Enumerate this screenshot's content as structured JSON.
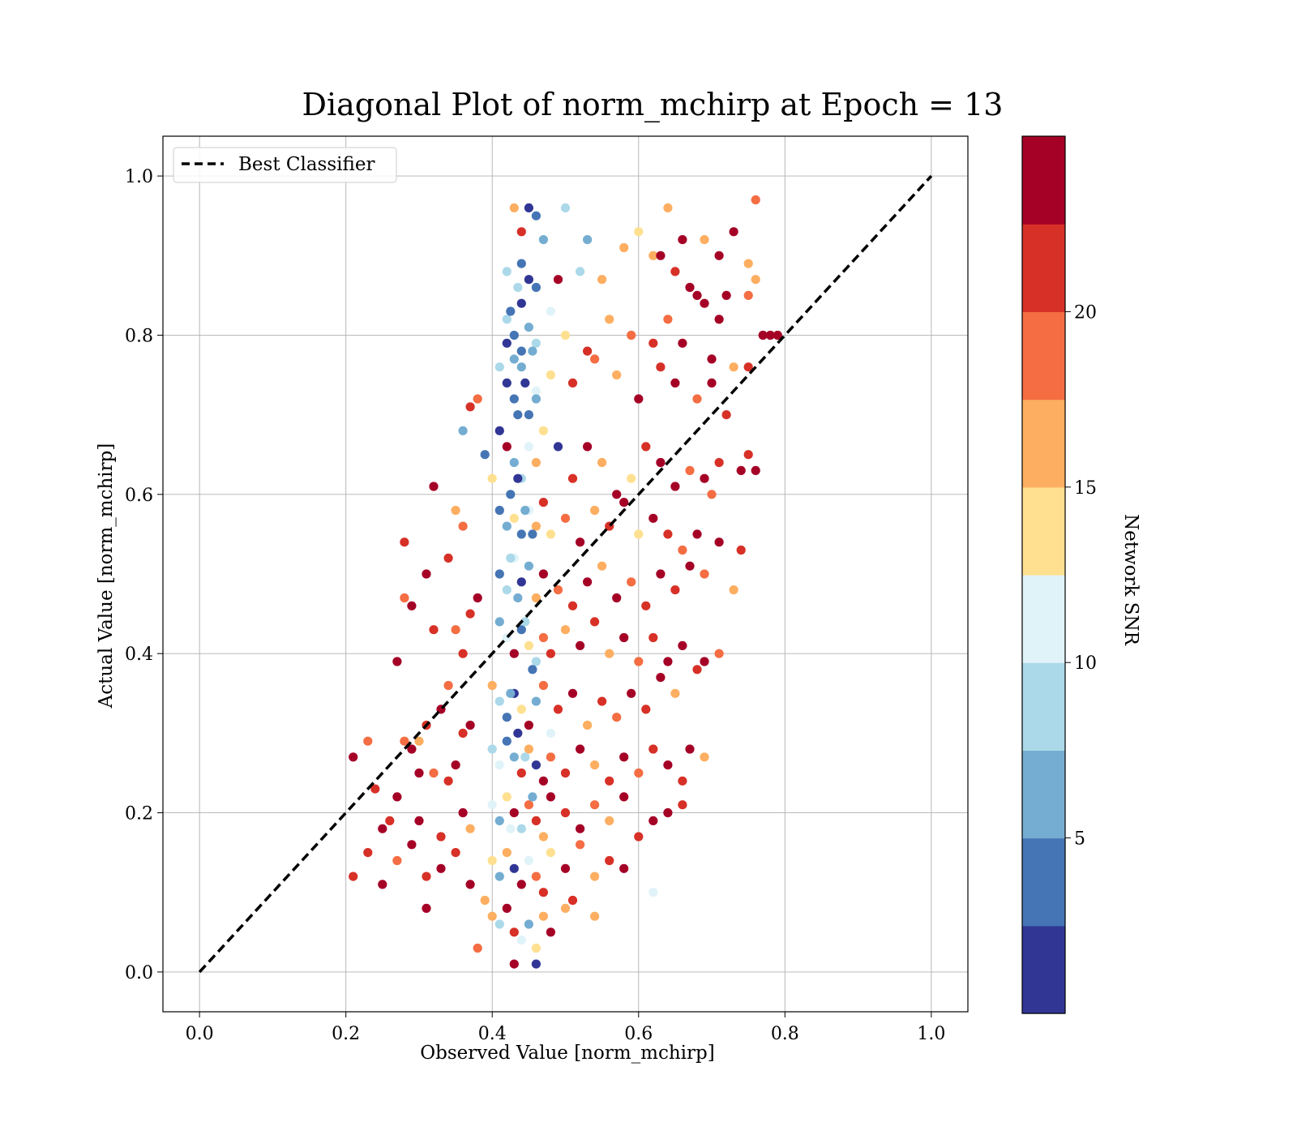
{
  "chart_data": {
    "type": "scatter",
    "title": "Diagonal Plot of norm_mchirp at Epoch = 13",
    "xlabel": "Observed Value [norm_mchirp]",
    "ylabel": "Actual Value [norm_mchirp]",
    "xlim": [
      -0.05,
      1.05
    ],
    "ylim": [
      -0.05,
      1.05
    ],
    "xticks": [
      "0.0",
      "0.2",
      "0.4",
      "0.6",
      "0.8",
      "1.0"
    ],
    "yticks": [
      "0.0",
      "0.2",
      "0.4",
      "0.6",
      "0.8",
      "1.0"
    ],
    "grid": true,
    "legend": {
      "placement": "upper-left",
      "entries": [
        "Best Classifier"
      ]
    },
    "reference_line": {
      "name": "Best Classifier",
      "x": [
        0.0,
        1.0
      ],
      "y": [
        0.0,
        1.0
      ],
      "style": "dashed",
      "color": "#000000"
    },
    "colorbar": {
      "label": "Network SNR",
      "range": [
        0,
        25
      ],
      "ticks": [
        5,
        10,
        15,
        20
      ],
      "tick_labels": [
        "5",
        "10",
        "15",
        "20"
      ],
      "colors": [
        "#313695",
        "#4575b4",
        "#74add1",
        "#abd9e9",
        "#e0f3f8",
        "#fee090",
        "#fdae61",
        "#f46d43",
        "#d73027",
        "#a50026"
      ]
    },
    "points": [
      [
        0.43,
        0.96,
        16
      ],
      [
        0.44,
        0.93,
        22
      ],
      [
        0.45,
        0.96,
        1
      ],
      [
        0.46,
        0.95,
        4
      ],
      [
        0.47,
        0.92,
        6
      ],
      [
        0.5,
        0.96,
        8
      ],
      [
        0.53,
        0.92,
        7
      ],
      [
        0.64,
        0.96,
        17
      ],
      [
        0.76,
        0.97,
        18
      ],
      [
        0.73,
        0.93,
        24
      ],
      [
        0.69,
        0.92,
        17
      ],
      [
        0.66,
        0.92,
        24
      ],
      [
        0.71,
        0.9,
        24
      ],
      [
        0.75,
        0.89,
        17
      ],
      [
        0.76,
        0.87,
        16
      ],
      [
        0.42,
        0.88,
        9
      ],
      [
        0.44,
        0.89,
        4
      ],
      [
        0.45,
        0.87,
        1
      ],
      [
        0.46,
        0.86,
        3
      ],
      [
        0.49,
        0.87,
        24
      ],
      [
        0.52,
        0.88,
        8
      ],
      [
        0.55,
        0.87,
        17
      ],
      [
        0.58,
        0.91,
        16
      ],
      [
        0.6,
        0.93,
        14
      ],
      [
        0.62,
        0.9,
        16
      ],
      [
        0.63,
        0.9,
        24
      ],
      [
        0.65,
        0.88,
        22
      ],
      [
        0.67,
        0.86,
        24
      ],
      [
        0.68,
        0.85,
        24
      ],
      [
        0.72,
        0.85,
        24
      ],
      [
        0.75,
        0.85,
        19
      ],
      [
        0.42,
        0.82,
        8
      ],
      [
        0.43,
        0.8,
        3
      ],
      [
        0.44,
        0.78,
        4
      ],
      [
        0.45,
        0.81,
        6
      ],
      [
        0.46,
        0.79,
        9
      ],
      [
        0.48,
        0.83,
        12
      ],
      [
        0.5,
        0.8,
        14
      ],
      [
        0.53,
        0.78,
        22
      ],
      [
        0.56,
        0.82,
        16
      ],
      [
        0.59,
        0.8,
        19
      ],
      [
        0.62,
        0.79,
        22
      ],
      [
        0.64,
        0.82,
        18
      ],
      [
        0.66,
        0.79,
        24
      ],
      [
        0.69,
        0.84,
        24
      ],
      [
        0.71,
        0.82,
        24
      ],
      [
        0.78,
        0.8,
        24
      ],
      [
        0.77,
        0.8,
        24
      ],
      [
        0.79,
        0.8,
        24
      ],
      [
        0.75,
        0.76,
        22
      ],
      [
        0.73,
        0.76,
        16
      ],
      [
        0.7,
        0.77,
        24
      ],
      [
        0.41,
        0.76,
        9
      ],
      [
        0.42,
        0.74,
        1
      ],
      [
        0.43,
        0.72,
        4
      ],
      [
        0.44,
        0.76,
        7
      ],
      [
        0.45,
        0.7,
        3
      ],
      [
        0.46,
        0.73,
        12
      ],
      [
        0.48,
        0.75,
        14
      ],
      [
        0.51,
        0.74,
        22
      ],
      [
        0.54,
        0.77,
        19
      ],
      [
        0.57,
        0.75,
        16
      ],
      [
        0.6,
        0.72,
        24
      ],
      [
        0.63,
        0.76,
        22
      ],
      [
        0.65,
        0.74,
        24
      ],
      [
        0.68,
        0.72,
        19
      ],
      [
        0.7,
        0.74,
        24
      ],
      [
        0.72,
        0.7,
        22
      ],
      [
        0.38,
        0.72,
        18
      ],
      [
        0.37,
        0.71,
        22
      ],
      [
        0.36,
        0.68,
        6
      ],
      [
        0.39,
        0.65,
        4
      ],
      [
        0.4,
        0.62,
        14
      ],
      [
        0.41,
        0.68,
        2
      ],
      [
        0.42,
        0.66,
        24
      ],
      [
        0.43,
        0.64,
        5
      ],
      [
        0.44,
        0.62,
        8
      ],
      [
        0.45,
        0.66,
        11
      ],
      [
        0.46,
        0.64,
        16
      ],
      [
        0.47,
        0.68,
        13
      ],
      [
        0.49,
        0.66,
        2
      ],
      [
        0.51,
        0.62,
        22
      ],
      [
        0.53,
        0.66,
        24
      ],
      [
        0.55,
        0.64,
        16
      ],
      [
        0.57,
        0.6,
        24
      ],
      [
        0.59,
        0.62,
        14
      ],
      [
        0.61,
        0.66,
        22
      ],
      [
        0.63,
        0.64,
        24
      ],
      [
        0.65,
        0.61,
        24
      ],
      [
        0.67,
        0.63,
        19
      ],
      [
        0.69,
        0.62,
        24
      ],
      [
        0.71,
        0.64,
        22
      ],
      [
        0.74,
        0.63,
        24
      ],
      [
        0.76,
        0.63,
        24
      ],
      [
        0.75,
        0.65,
        22
      ],
      [
        0.7,
        0.6,
        18
      ],
      [
        0.32,
        0.61,
        24
      ],
      [
        0.41,
        0.58,
        3
      ],
      [
        0.42,
        0.56,
        6
      ],
      [
        0.43,
        0.57,
        14
      ],
      [
        0.44,
        0.55,
        4
      ],
      [
        0.45,
        0.58,
        10
      ],
      [
        0.46,
        0.56,
        16
      ],
      [
        0.47,
        0.59,
        22
      ],
      [
        0.48,
        0.55,
        13
      ],
      [
        0.5,
        0.57,
        19
      ],
      [
        0.52,
        0.54,
        24
      ],
      [
        0.54,
        0.58,
        16
      ],
      [
        0.56,
        0.56,
        22
      ],
      [
        0.58,
        0.59,
        24
      ],
      [
        0.6,
        0.55,
        14
      ],
      [
        0.62,
        0.57,
        24
      ],
      [
        0.64,
        0.55,
        22
      ],
      [
        0.66,
        0.53,
        19
      ],
      [
        0.68,
        0.55,
        24
      ],
      [
        0.71,
        0.54,
        24
      ],
      [
        0.74,
        0.53,
        22
      ],
      [
        0.35,
        0.58,
        16
      ],
      [
        0.36,
        0.56,
        19
      ],
      [
        0.34,
        0.52,
        22
      ],
      [
        0.31,
        0.5,
        24
      ],
      [
        0.28,
        0.54,
        22
      ],
      [
        0.41,
        0.5,
        4
      ],
      [
        0.42,
        0.48,
        9
      ],
      [
        0.43,
        0.52,
        12
      ],
      [
        0.44,
        0.49,
        2
      ],
      [
        0.45,
        0.51,
        7
      ],
      [
        0.46,
        0.47,
        15
      ],
      [
        0.47,
        0.5,
        24
      ],
      [
        0.49,
        0.48,
        18
      ],
      [
        0.51,
        0.46,
        22
      ],
      [
        0.53,
        0.49,
        24
      ],
      [
        0.55,
        0.51,
        16
      ],
      [
        0.57,
        0.47,
        24
      ],
      [
        0.59,
        0.49,
        19
      ],
      [
        0.61,
        0.46,
        22
      ],
      [
        0.63,
        0.5,
        24
      ],
      [
        0.65,
        0.48,
        22
      ],
      [
        0.67,
        0.51,
        24
      ],
      [
        0.69,
        0.5,
        19
      ],
      [
        0.73,
        0.48,
        16
      ],
      [
        0.38,
        0.47,
        24
      ],
      [
        0.37,
        0.45,
        22
      ],
      [
        0.35,
        0.43,
        19
      ],
      [
        0.32,
        0.43,
        22
      ],
      [
        0.29,
        0.46,
        24
      ],
      [
        0.28,
        0.47,
        19
      ],
      [
        0.41,
        0.44,
        6
      ],
      [
        0.42,
        0.42,
        10
      ],
      [
        0.43,
        0.4,
        24
      ],
      [
        0.44,
        0.43,
        3
      ],
      [
        0.45,
        0.41,
        13
      ],
      [
        0.46,
        0.39,
        8
      ],
      [
        0.47,
        0.42,
        19
      ],
      [
        0.48,
        0.4,
        22
      ],
      [
        0.5,
        0.43,
        16
      ],
      [
        0.52,
        0.41,
        24
      ],
      [
        0.54,
        0.44,
        22
      ],
      [
        0.56,
        0.4,
        16
      ],
      [
        0.58,
        0.42,
        24
      ],
      [
        0.6,
        0.39,
        19
      ],
      [
        0.62,
        0.42,
        22
      ],
      [
        0.64,
        0.39,
        24
      ],
      [
        0.66,
        0.41,
        24
      ],
      [
        0.68,
        0.38,
        22
      ],
      [
        0.71,
        0.4,
        18
      ],
      [
        0.69,
        0.39,
        24
      ],
      [
        0.27,
        0.39,
        24
      ],
      [
        0.36,
        0.4,
        22
      ],
      [
        0.4,
        0.36,
        16
      ],
      [
        0.41,
        0.34,
        9
      ],
      [
        0.42,
        0.32,
        4
      ],
      [
        0.43,
        0.35,
        1
      ],
      [
        0.44,
        0.33,
        14
      ],
      [
        0.45,
        0.31,
        24
      ],
      [
        0.46,
        0.34,
        6
      ],
      [
        0.47,
        0.36,
        19
      ],
      [
        0.48,
        0.3,
        11
      ],
      [
        0.49,
        0.33,
        22
      ],
      [
        0.51,
        0.35,
        24
      ],
      [
        0.53,
        0.31,
        16
      ],
      [
        0.55,
        0.34,
        22
      ],
      [
        0.57,
        0.32,
        19
      ],
      [
        0.59,
        0.35,
        24
      ],
      [
        0.61,
        0.33,
        22
      ],
      [
        0.63,
        0.37,
        24
      ],
      [
        0.65,
        0.35,
        16
      ],
      [
        0.34,
        0.36,
        19
      ],
      [
        0.33,
        0.33,
        24
      ],
      [
        0.31,
        0.31,
        22
      ],
      [
        0.3,
        0.29,
        16
      ],
      [
        0.29,
        0.28,
        24
      ],
      [
        0.28,
        0.29,
        19
      ],
      [
        0.36,
        0.3,
        22
      ],
      [
        0.37,
        0.31,
        24
      ],
      [
        0.4,
        0.28,
        9
      ],
      [
        0.41,
        0.26,
        12
      ],
      [
        0.42,
        0.29,
        3
      ],
      [
        0.43,
        0.27,
        7
      ],
      [
        0.44,
        0.25,
        22
      ],
      [
        0.45,
        0.28,
        16
      ],
      [
        0.46,
        0.26,
        1
      ],
      [
        0.47,
        0.24,
        24
      ],
      [
        0.48,
        0.27,
        19
      ],
      [
        0.5,
        0.25,
        22
      ],
      [
        0.52,
        0.28,
        24
      ],
      [
        0.54,
        0.26,
        16
      ],
      [
        0.56,
        0.24,
        22
      ],
      [
        0.58,
        0.27,
        24
      ],
      [
        0.6,
        0.25,
        19
      ],
      [
        0.62,
        0.28,
        22
      ],
      [
        0.64,
        0.26,
        24
      ],
      [
        0.66,
        0.24,
        22
      ],
      [
        0.67,
        0.28,
        24
      ],
      [
        0.69,
        0.27,
        16
      ],
      [
        0.35,
        0.26,
        24
      ],
      [
        0.34,
        0.24,
        22
      ],
      [
        0.32,
        0.25,
        19
      ],
      [
        0.3,
        0.25,
        24
      ],
      [
        0.24,
        0.23,
        22
      ],
      [
        0.23,
        0.29,
        18
      ],
      [
        0.21,
        0.27,
        24
      ],
      [
        0.4,
        0.21,
        11
      ],
      [
        0.41,
        0.19,
        5
      ],
      [
        0.42,
        0.22,
        14
      ],
      [
        0.43,
        0.2,
        24
      ],
      [
        0.44,
        0.18,
        8
      ],
      [
        0.45,
        0.21,
        19
      ],
      [
        0.46,
        0.19,
        22
      ],
      [
        0.47,
        0.17,
        16
      ],
      [
        0.48,
        0.22,
        24
      ],
      [
        0.5,
        0.2,
        22
      ],
      [
        0.52,
        0.18,
        24
      ],
      [
        0.54,
        0.21,
        19
      ],
      [
        0.56,
        0.19,
        16
      ],
      [
        0.58,
        0.22,
        24
      ],
      [
        0.6,
        0.17,
        22
      ],
      [
        0.62,
        0.19,
        24
      ],
      [
        0.64,
        0.2,
        24
      ],
      [
        0.66,
        0.21,
        22
      ],
      [
        0.36,
        0.2,
        24
      ],
      [
        0.37,
        0.18,
        16
      ],
      [
        0.33,
        0.17,
        22
      ],
      [
        0.3,
        0.19,
        24
      ],
      [
        0.27,
        0.22,
        24
      ],
      [
        0.26,
        0.19,
        22
      ],
      [
        0.25,
        0.18,
        24
      ],
      [
        0.4,
        0.14,
        13
      ],
      [
        0.41,
        0.12,
        7
      ],
      [
        0.42,
        0.15,
        16
      ],
      [
        0.43,
        0.13,
        2
      ],
      [
        0.44,
        0.11,
        24
      ],
      [
        0.45,
        0.14,
        10
      ],
      [
        0.46,
        0.12,
        19
      ],
      [
        0.47,
        0.1,
        22
      ],
      [
        0.48,
        0.15,
        13
      ],
      [
        0.5,
        0.13,
        24
      ],
      [
        0.52,
        0.16,
        19
      ],
      [
        0.54,
        0.12,
        16
      ],
      [
        0.56,
        0.14,
        22
      ],
      [
        0.58,
        0.13,
        24
      ],
      [
        0.62,
        0.1,
        11
      ],
      [
        0.35,
        0.15,
        22
      ],
      [
        0.33,
        0.13,
        24
      ],
      [
        0.31,
        0.12,
        22
      ],
      [
        0.29,
        0.16,
        24
      ],
      [
        0.27,
        0.14,
        19
      ],
      [
        0.25,
        0.11,
        24
      ],
      [
        0.23,
        0.15,
        22
      ],
      [
        0.21,
        0.12,
        22
      ],
      [
        0.37,
        0.11,
        24
      ],
      [
        0.4,
        0.07,
        16
      ],
      [
        0.41,
        0.06,
        9
      ],
      [
        0.42,
        0.08,
        24
      ],
      [
        0.43,
        0.05,
        22
      ],
      [
        0.44,
        0.04,
        11
      ],
      [
        0.45,
        0.06,
        5
      ],
      [
        0.46,
        0.03,
        13
      ],
      [
        0.47,
        0.07,
        16
      ],
      [
        0.48,
        0.05,
        24
      ],
      [
        0.5,
        0.08,
        16
      ],
      [
        0.51,
        0.09,
        22
      ],
      [
        0.54,
        0.07,
        16
      ],
      [
        0.38,
        0.03,
        18
      ],
      [
        0.43,
        0.01,
        24
      ],
      [
        0.46,
        0.01,
        2
      ],
      [
        0.31,
        0.08,
        24
      ],
      [
        0.39,
        0.09,
        16
      ],
      [
        0.425,
        0.6,
        3
      ],
      [
        0.435,
        0.62,
        1
      ],
      [
        0.445,
        0.58,
        6
      ],
      [
        0.455,
        0.55,
        3
      ],
      [
        0.425,
        0.52,
        8
      ],
      [
        0.435,
        0.47,
        5
      ],
      [
        0.445,
        0.44,
        9
      ],
      [
        0.455,
        0.38,
        4
      ],
      [
        0.425,
        0.35,
        7
      ],
      [
        0.435,
        0.3,
        2
      ],
      [
        0.445,
        0.27,
        9
      ],
      [
        0.455,
        0.22,
        6
      ],
      [
        0.425,
        0.18,
        10
      ],
      [
        0.435,
        0.7,
        3
      ],
      [
        0.445,
        0.74,
        2
      ],
      [
        0.455,
        0.78,
        5
      ],
      [
        0.425,
        0.83,
        4
      ],
      [
        0.435,
        0.86,
        9
      ],
      [
        0.42,
        0.79,
        2
      ],
      [
        0.43,
        0.77,
        6
      ],
      [
        0.44,
        0.84,
        1
      ],
      [
        0.46,
        0.72,
        7
      ]
    ]
  }
}
